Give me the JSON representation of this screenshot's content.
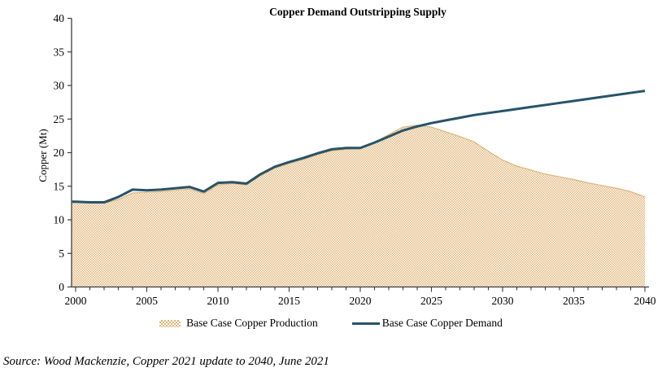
{
  "chart_data": {
    "type": "area",
    "title": "Copper Demand Outstripping Supply",
    "xlabel": "",
    "ylabel": "Copper (Mt)",
    "ylim": [
      0,
      40
    ],
    "ytick_step": 5,
    "ytick_labels": [
      "0",
      "5",
      "10",
      "15",
      "20",
      "25",
      "30",
      "35",
      "40"
    ],
    "xtick_labels": [
      "2000",
      "2005",
      "2010",
      "2015",
      "2020",
      "2025",
      "2030",
      "2035",
      "2040"
    ],
    "grid": false,
    "legend_position": "bottom",
    "x": [
      2000,
      2001,
      2002,
      2003,
      2004,
      2005,
      2006,
      2007,
      2008,
      2009,
      2010,
      2011,
      2012,
      2013,
      2014,
      2015,
      2016,
      2017,
      2018,
      2019,
      2020,
      2021,
      2022,
      2023,
      2024,
      2025,
      2026,
      2027,
      2028,
      2029,
      2030,
      2031,
      2032,
      2033,
      2034,
      2035,
      2036,
      2037,
      2038,
      2039,
      2040
    ],
    "series": [
      {
        "name": "Base Case Copper Production",
        "type": "area",
        "color": "#dfb57c",
        "values": [
          12.6,
          12.5,
          12.5,
          13.0,
          14.0,
          14.1,
          14.2,
          14.4,
          14.6,
          13.9,
          15.2,
          15.4,
          15.2,
          16.6,
          17.7,
          18.4,
          19.0,
          19.7,
          20.3,
          20.5,
          20.6,
          21.5,
          22.7,
          23.8,
          24.1,
          23.8,
          23.1,
          22.4,
          21.6,
          20.2,
          18.9,
          18.0,
          17.4,
          16.8,
          16.4,
          16.0,
          15.5,
          15.1,
          14.7,
          14.2,
          13.4
        ]
      },
      {
        "name": "Base Case Copper Demand",
        "type": "line",
        "color": "#27536a",
        "values": [
          12.7,
          12.6,
          12.6,
          13.4,
          14.5,
          14.4,
          14.5,
          14.7,
          14.9,
          14.2,
          15.5,
          15.6,
          15.4,
          16.8,
          17.9,
          18.6,
          19.2,
          19.9,
          20.5,
          20.7,
          20.7,
          21.5,
          22.4,
          23.3,
          23.9,
          24.4,
          24.8,
          25.2,
          25.6,
          25.9,
          26.2,
          26.5,
          26.8,
          27.1,
          27.4,
          27.7,
          28.0,
          28.3,
          28.6,
          28.9,
          29.2
        ]
      }
    ]
  },
  "source_note": "Source: Wood Mackenzie, Copper 2021 update to 2040, June 2021"
}
